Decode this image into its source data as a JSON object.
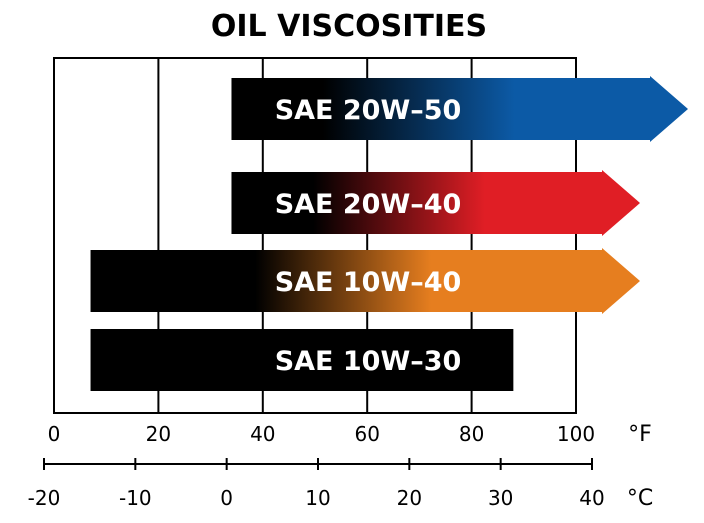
{
  "chart_data": {
    "type": "bar",
    "orientation": "horizontal",
    "title": "OIL VISCOSITIES",
    "xlabel": "",
    "ylabel": "",
    "grid": true,
    "x_axis_primary": {
      "unit": "°F",
      "range": [
        0,
        100
      ],
      "ticks": [
        0,
        20,
        40,
        60,
        80,
        100
      ],
      "tick_labels": [
        "0",
        "20",
        "40",
        "60",
        "80",
        "100"
      ]
    },
    "x_axis_secondary": {
      "unit": "°C",
      "range": [
        -20,
        40
      ],
      "ticks": [
        -20,
        -10,
        0,
        10,
        20,
        30,
        40
      ],
      "tick_labels": [
        "-20",
        "-10",
        "0",
        "10",
        "20",
        "30",
        "40"
      ]
    },
    "series": [
      {
        "name": "SAE 20W–50",
        "start_f": 34,
        "end_f": 100,
        "open_ended": true,
        "color": "#0c5aa6"
      },
      {
        "name": "SAE 20W–40",
        "start_f": 34,
        "end_f": 100,
        "open_ended": true,
        "color": "#e01e25"
      },
      {
        "name": "SAE 10W–40",
        "start_f": 7,
        "end_f": 100,
        "open_ended": true,
        "color": "#e67e1f"
      },
      {
        "name": "SAE 10W–30",
        "start_f": 7,
        "end_f": 88,
        "open_ended": false,
        "color": "#000000"
      }
    ]
  }
}
